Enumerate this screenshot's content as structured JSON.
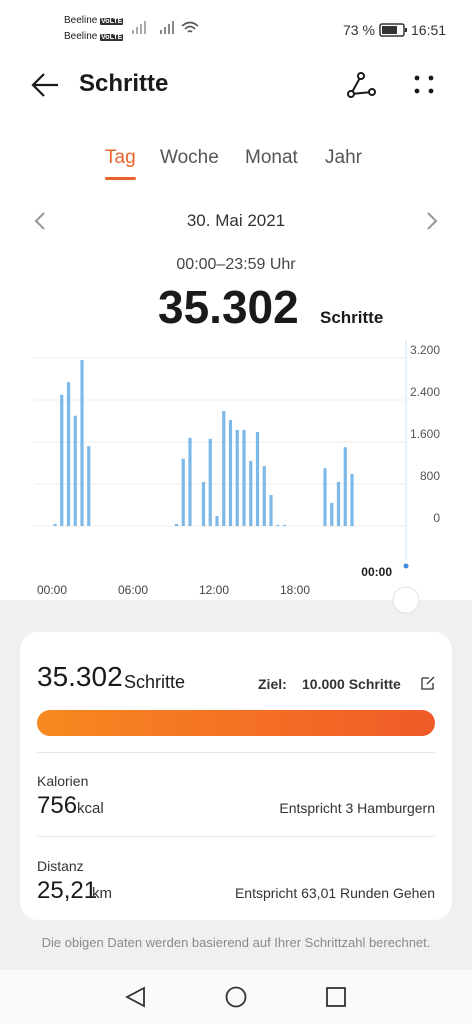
{
  "status_bar": {
    "carrier_1": "Beeline",
    "carrier_2": "Beeline",
    "badge": "VoLTE",
    "battery": "73 %",
    "time": "16:51"
  },
  "header": {
    "title": "Schritte"
  },
  "tabs": [
    "Tag",
    "Woche",
    "Monat",
    "Jahr"
  ],
  "active_tab": 0,
  "date": "30. Mai 2021",
  "time_range": "00:00–23:59 Uhr",
  "total": {
    "value": "35.302",
    "unit": "Schritte"
  },
  "chart_data": {
    "type": "bar",
    "color": "#7db9e8",
    "categories": [
      "00:00",
      null,
      null,
      null,
      null,
      null,
      null,
      null,
      null,
      null,
      null,
      null,
      "06:00",
      null,
      null,
      null,
      null,
      null,
      null,
      null,
      null,
      null,
      null,
      null,
      "12:00",
      null,
      null,
      null,
      null,
      null,
      null,
      null,
      null,
      null,
      null,
      null,
      "18:00",
      null,
      null,
      null,
      null,
      null,
      null,
      null,
      null,
      null,
      null,
      null
    ],
    "values": [
      40,
      2500,
      2740,
      2100,
      3160,
      1520,
      0,
      0,
      0,
      0,
      0,
      0,
      0,
      0,
      0,
      0,
      0,
      0,
      40,
      1280,
      1680,
      0,
      840,
      1660,
      190,
      2190,
      2020,
      1830,
      1830,
      1240,
      1790,
      1140,
      590,
      20,
      20,
      0,
      0,
      0,
      0,
      0,
      1100,
      440,
      840,
      1500,
      990,
      0,
      0,
      0
    ],
    "ylim": [
      0,
      3200
    ],
    "yticks": [
      {
        "value": 3200,
        "label": "3.200"
      },
      {
        "value": 2400,
        "label": "2.400"
      },
      {
        "value": 1600,
        "label": "1.600"
      },
      800,
      0
    ],
    "grid": true,
    "selected_time": "00:00"
  },
  "summary": {
    "steps": {
      "value": "35.302",
      "unit": "Schritte",
      "goal_label": "Ziel:",
      "goal": "10.000 Schritte"
    },
    "calories": {
      "label": "Kalorien",
      "value": "756",
      "unit": "kcal",
      "equivalent": "Entspricht 3 Hamburgern"
    },
    "distance": {
      "label": "Distanz",
      "value": "25,21",
      "unit": "km",
      "equivalent": "Entspricht 63,01 Runden Gehen"
    }
  },
  "footer_note": "Die obigen Daten werden basierend auf Ihrer Schrittzahl berechnet."
}
